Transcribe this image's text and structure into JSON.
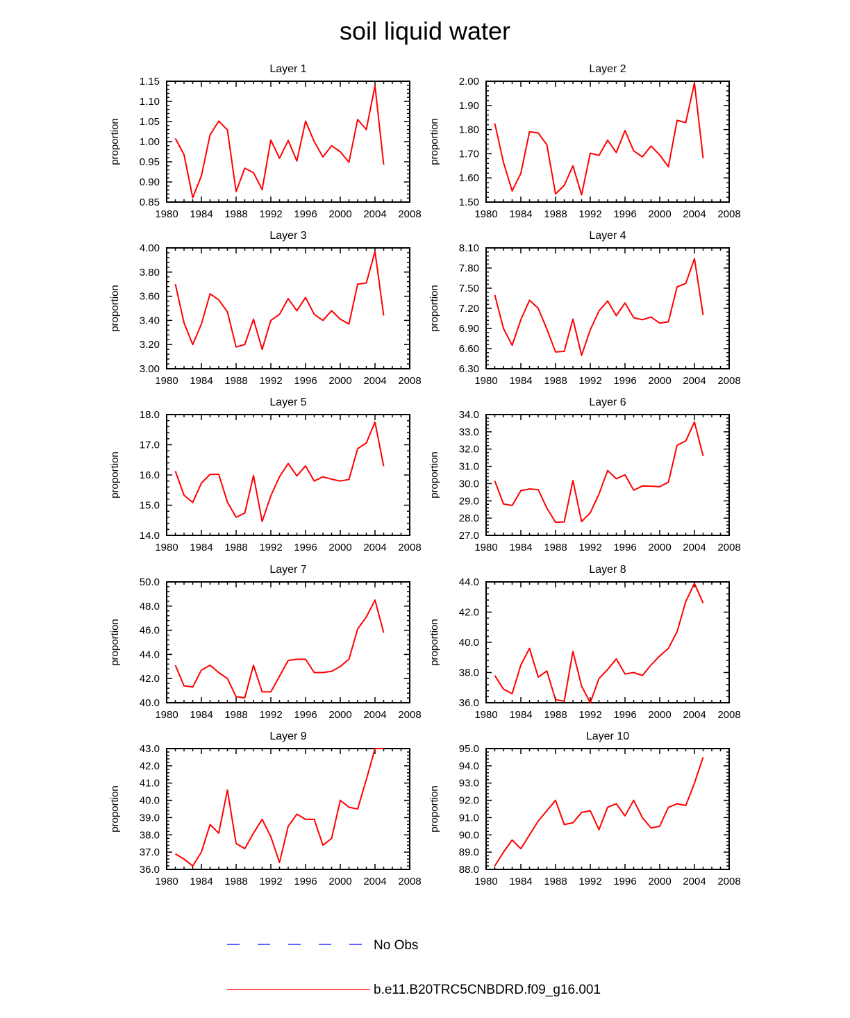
{
  "title": "soil liquid water",
  "colors": {
    "model": "#ff0000",
    "obs": "#0000ff",
    "axis": "#000000"
  },
  "legend": [
    {
      "label": "No Obs",
      "style": "dashed",
      "color": "#0000ff"
    },
    {
      "label": "b.e11.B20TRC5CNBDRD.f09_g16.001",
      "style": "solid",
      "color": "#ff0000"
    }
  ],
  "chart_data": [
    {
      "type": "line",
      "title": "Layer 1",
      "ylabel": "proportion",
      "xlabel": "",
      "xlim": [
        1980,
        2008
      ],
      "xticks": [
        "1980",
        "1984",
        "1988",
        "1992",
        "1996",
        "2000",
        "2004",
        "2008"
      ],
      "ylim": [
        0.85,
        1.15
      ],
      "yticks": [
        "0.85",
        "0.90",
        "0.95",
        "1.00",
        "1.05",
        "1.10",
        "1.15"
      ],
      "x": [
        1981,
        1982,
        1983,
        1984,
        1985,
        1986,
        1987,
        1988,
        1989,
        1990,
        1991,
        1992,
        1993,
        1994,
        1995,
        1996,
        1997,
        1998,
        1999,
        2000,
        2001,
        2002,
        2003,
        2004,
        2005
      ],
      "series": [
        {
          "name": "b.e11.B20TRC5CNBDRD.f09_g16.001",
          "values": [
            1.008,
            0.968,
            0.861,
            0.915,
            1.017,
            1.051,
            1.029,
            0.876,
            0.934,
            0.923,
            0.881,
            1.004,
            0.959,
            1.003,
            0.952,
            1.051,
            1.0,
            0.962,
            0.99,
            0.975,
            0.949,
            1.055,
            1.03,
            1.139,
            0.943
          ]
        }
      ]
    },
    {
      "type": "line",
      "title": "Layer 2",
      "ylabel": "proportion",
      "xlabel": "",
      "xlim": [
        1980,
        2008
      ],
      "xticks": [
        "1980",
        "1984",
        "1988",
        "1992",
        "1996",
        "2000",
        "2004",
        "2008"
      ],
      "ylim": [
        1.5,
        2.0
      ],
      "yticks": [
        "1.50",
        "1.60",
        "1.70",
        "1.80",
        "1.90",
        "2.00"
      ],
      "x": [
        1981,
        1982,
        1983,
        1984,
        1985,
        1986,
        1987,
        1988,
        1989,
        1990,
        1991,
        1992,
        1993,
        1994,
        1995,
        1996,
        1997,
        1998,
        1999,
        2000,
        2001,
        2002,
        2003,
        2004,
        2005
      ],
      "series": [
        {
          "name": "b.e11.B20TRC5CNBDRD.f09_g16.001",
          "values": [
            1.826,
            1.664,
            1.546,
            1.619,
            1.791,
            1.786,
            1.737,
            1.534,
            1.569,
            1.65,
            1.53,
            1.702,
            1.693,
            1.756,
            1.705,
            1.796,
            1.712,
            1.687,
            1.732,
            1.695,
            1.646,
            1.838,
            1.829,
            1.993,
            1.681
          ]
        }
      ]
    },
    {
      "type": "line",
      "title": "Layer 3",
      "ylabel": "proportion",
      "xlabel": "",
      "xlim": [
        1980,
        2008
      ],
      "xticks": [
        "1980",
        "1984",
        "1988",
        "1992",
        "1996",
        "2000",
        "2004",
        "2008"
      ],
      "ylim": [
        3.0,
        4.0
      ],
      "yticks": [
        "3.00",
        "3.20",
        "3.40",
        "3.60",
        "3.80",
        "4.00"
      ],
      "x": [
        1981,
        1982,
        1983,
        1984,
        1985,
        1986,
        1987,
        1988,
        1989,
        1990,
        1991,
        1992,
        1993,
        1994,
        1995,
        1996,
        1997,
        1998,
        1999,
        2000,
        2001,
        2002,
        2003,
        2004,
        2005
      ],
      "series": [
        {
          "name": "b.e11.B20TRC5CNBDRD.f09_g16.001",
          "values": [
            3.7,
            3.38,
            3.2,
            3.37,
            3.62,
            3.57,
            3.47,
            3.18,
            3.2,
            3.41,
            3.16,
            3.4,
            3.45,
            3.58,
            3.48,
            3.59,
            3.45,
            3.4,
            3.48,
            3.41,
            3.37,
            3.7,
            3.71,
            3.97,
            3.44
          ]
        }
      ]
    },
    {
      "type": "line",
      "title": "Layer 4",
      "ylabel": "proportion",
      "xlabel": "",
      "xlim": [
        1980,
        2008
      ],
      "xticks": [
        "1980",
        "1984",
        "1988",
        "1992",
        "1996",
        "2000",
        "2004",
        "2008"
      ],
      "ylim": [
        6.3,
        8.1
      ],
      "yticks": [
        "6.30",
        "6.60",
        "6.90",
        "7.20",
        "7.50",
        "7.80",
        "8.10"
      ],
      "x": [
        1981,
        1982,
        1983,
        1984,
        1985,
        1986,
        1987,
        1988,
        1989,
        1990,
        1991,
        1992,
        1993,
        1994,
        1995,
        1996,
        1997,
        1998,
        1999,
        2000,
        2001,
        2002,
        2003,
        2004,
        2005
      ],
      "series": [
        {
          "name": "b.e11.B20TRC5CNBDRD.f09_g16.001",
          "values": [
            7.4,
            6.9,
            6.65,
            7.03,
            7.32,
            7.2,
            6.89,
            6.55,
            6.56,
            7.04,
            6.5,
            6.88,
            7.16,
            7.31,
            7.09,
            7.28,
            7.06,
            7.03,
            7.07,
            6.98,
            7.0,
            7.52,
            7.57,
            7.94,
            7.1
          ]
        }
      ]
    },
    {
      "type": "line",
      "title": "Layer 5",
      "ylabel": "proportion",
      "xlabel": "",
      "xlim": [
        1980,
        2008
      ],
      "xticks": [
        "1980",
        "1984",
        "1988",
        "1992",
        "1996",
        "2000",
        "2004",
        "2008"
      ],
      "ylim": [
        14.0,
        18.0
      ],
      "yticks": [
        "14.0",
        "15.0",
        "16.0",
        "17.0",
        "18.0"
      ],
      "x": [
        1981,
        1982,
        1983,
        1984,
        1985,
        1986,
        1987,
        1988,
        1989,
        1990,
        1991,
        1992,
        1993,
        1994,
        1995,
        1996,
        1997,
        1998,
        1999,
        2000,
        2001,
        2002,
        2003,
        2004,
        2005
      ],
      "series": [
        {
          "name": "b.e11.B20TRC5CNBDRD.f09_g16.001",
          "values": [
            16.13,
            15.33,
            15.09,
            15.73,
            16.02,
            16.02,
            15.1,
            14.6,
            14.74,
            15.98,
            14.46,
            15.31,
            15.94,
            16.38,
            15.97,
            16.3,
            15.8,
            15.94,
            15.86,
            15.8,
            15.85,
            16.87,
            17.06,
            17.75,
            16.29
          ]
        }
      ]
    },
    {
      "type": "line",
      "title": "Layer 6",
      "ylabel": "proportion",
      "xlabel": "",
      "xlim": [
        1980,
        2008
      ],
      "xticks": [
        "1980",
        "1984",
        "1988",
        "1992",
        "1996",
        "2000",
        "2004",
        "2008"
      ],
      "ylim": [
        27.0,
        34.0
      ],
      "yticks": [
        "27.0",
        "28.0",
        "29.0",
        "30.0",
        "31.0",
        "32.0",
        "33.0",
        "34.0"
      ],
      "x": [
        1981,
        1982,
        1983,
        1984,
        1985,
        1986,
        1987,
        1988,
        1989,
        1990,
        1991,
        1992,
        1993,
        1994,
        1995,
        1996,
        1997,
        1998,
        1999,
        2000,
        2001,
        2002,
        2003,
        2004,
        2005
      ],
      "series": [
        {
          "name": "b.e11.B20TRC5CNBDRD.f09_g16.001",
          "values": [
            30.16,
            28.82,
            28.73,
            29.59,
            29.69,
            29.65,
            28.58,
            27.76,
            27.78,
            30.18,
            27.8,
            28.31,
            29.39,
            30.76,
            30.28,
            30.51,
            29.62,
            29.86,
            29.85,
            29.82,
            30.08,
            32.22,
            32.47,
            33.57,
            31.6
          ]
        }
      ]
    },
    {
      "type": "line",
      "title": "Layer 7",
      "ylabel": "proportion",
      "xlabel": "",
      "xlim": [
        1980,
        2008
      ],
      "xticks": [
        "1980",
        "1984",
        "1988",
        "1992",
        "1996",
        "2000",
        "2004",
        "2008"
      ],
      "ylim": [
        40.0,
        50.0
      ],
      "yticks": [
        "40.0",
        "42.0",
        "44.0",
        "46.0",
        "48.0",
        "50.0"
      ],
      "x": [
        1981,
        1982,
        1983,
        1984,
        1985,
        1986,
        1987,
        1988,
        1989,
        1990,
        1991,
        1992,
        1993,
        1994,
        1995,
        1996,
        1997,
        1998,
        1999,
        2000,
        2001,
        2002,
        2003,
        2004,
        2005
      ],
      "series": [
        {
          "name": "b.e11.B20TRC5CNBDRD.f09_g16.001",
          "values": [
            43.1,
            41.4,
            41.3,
            42.7,
            43.1,
            42.5,
            42.0,
            40.5,
            40.4,
            43.1,
            40.9,
            40.9,
            42.2,
            43.5,
            43.6,
            43.6,
            42.5,
            42.5,
            42.6,
            43.0,
            43.6,
            46.1,
            47.1,
            48.5,
            45.8
          ]
        }
      ]
    },
    {
      "type": "line",
      "title": "Layer 8",
      "ylabel": "proportion",
      "xlabel": "",
      "xlim": [
        1980,
        2008
      ],
      "xticks": [
        "1980",
        "1984",
        "1988",
        "1992",
        "1996",
        "2000",
        "2004",
        "2008"
      ],
      "ylim": [
        36.0,
        44.0
      ],
      "yticks": [
        "36.0",
        "38.0",
        "40.0",
        "42.0",
        "44.0"
      ],
      "x": [
        1981,
        1982,
        1983,
        1984,
        1985,
        1986,
        1987,
        1988,
        1989,
        1990,
        1991,
        1992,
        1993,
        1994,
        1995,
        1996,
        1997,
        1998,
        1999,
        2000,
        2001,
        2002,
        2003,
        2004,
        2005
      ],
      "series": [
        {
          "name": "b.e11.B20TRC5CNBDRD.f09_g16.001",
          "values": [
            37.8,
            36.9,
            36.6,
            38.5,
            39.6,
            37.7,
            38.1,
            36.2,
            36.1,
            39.4,
            37.1,
            36.0,
            37.6,
            38.2,
            38.9,
            37.9,
            38.0,
            37.8,
            38.5,
            39.1,
            39.6,
            40.7,
            42.7,
            43.9,
            42.6
          ]
        }
      ]
    },
    {
      "type": "line",
      "title": "Layer 9",
      "ylabel": "proportion",
      "xlabel": "",
      "xlim": [
        1980,
        2008
      ],
      "xticks": [
        "1980",
        "1984",
        "1988",
        "1992",
        "1996",
        "2000",
        "2004",
        "2008"
      ],
      "ylim": [
        36.0,
        43.0
      ],
      "yticks": [
        "36.0",
        "37.0",
        "38.0",
        "39.0",
        "40.0",
        "41.0",
        "42.0",
        "43.0"
      ],
      "x": [
        1981,
        1982,
        1983,
        1984,
        1985,
        1986,
        1987,
        1988,
        1989,
        1990,
        1991,
        1992,
        1993,
        1994,
        1995,
        1996,
        1997,
        1998,
        1999,
        2000,
        2001,
        2002,
        2003,
        2004,
        2005
      ],
      "series": [
        {
          "name": "b.e11.B20TRC5CNBDRD.f09_g16.001",
          "values": [
            36.9,
            36.6,
            36.2,
            37.0,
            38.6,
            38.1,
            40.6,
            37.5,
            37.2,
            38.1,
            38.9,
            37.9,
            36.4,
            38.5,
            39.2,
            38.9,
            38.9,
            37.4,
            37.8,
            40.0,
            39.6,
            39.5,
            41.2,
            43.0,
            43.0
          ]
        }
      ]
    },
    {
      "type": "line",
      "title": "Layer 10",
      "ylabel": "proportion",
      "xlabel": "",
      "xlim": [
        1980,
        2008
      ],
      "xticks": [
        "1980",
        "1984",
        "1988",
        "1992",
        "1996",
        "2000",
        "2004",
        "2008"
      ],
      "ylim": [
        88.0,
        95.0
      ],
      "yticks": [
        "88.0",
        "89.0",
        "90.0",
        "91.0",
        "92.0",
        "93.0",
        "94.0",
        "95.0"
      ],
      "x": [
        1981,
        1982,
        1983,
        1984,
        1985,
        1986,
        1987,
        1988,
        1989,
        1990,
        1991,
        1992,
        1993,
        1994,
        1995,
        1996,
        1997,
        1998,
        1999,
        2000,
        2001,
        2002,
        2003,
        2004,
        2005
      ],
      "series": [
        {
          "name": "b.e11.B20TRC5CNBDRD.f09_g16.001",
          "values": [
            88.2,
            89.0,
            89.7,
            89.2,
            90.0,
            90.8,
            91.4,
            92.0,
            90.6,
            90.7,
            91.3,
            91.4,
            90.3,
            91.6,
            91.8,
            91.1,
            92.0,
            91.0,
            90.4,
            90.5,
            91.6,
            91.8,
            91.7,
            93.0,
            94.5
          ]
        }
      ]
    }
  ]
}
